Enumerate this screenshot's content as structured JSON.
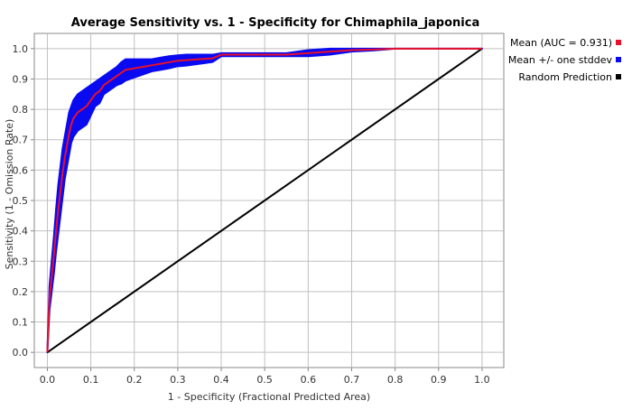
{
  "chart_data": {
    "type": "line",
    "title": "Average Sensitivity vs. 1 - Specificity for Chimaphila_japonica",
    "xlabel": "1 - Specificity (Fractional Predicted Area)",
    "ylabel": "Sensitivity (1 - Omission Rate)",
    "xlim": [
      -0.03,
      1.05
    ],
    "ylim": [
      -0.05,
      1.05
    ],
    "xticks": [
      "0.0",
      "0.1",
      "0.2",
      "0.3",
      "0.4",
      "0.5",
      "0.6",
      "0.7",
      "0.8",
      "0.9",
      "1.0"
    ],
    "yticks": [
      "0.0",
      "0.1",
      "0.2",
      "0.3",
      "0.4",
      "0.5",
      "0.6",
      "0.7",
      "0.8",
      "0.9",
      "1.0"
    ],
    "grid": true,
    "legend_position": "right",
    "series": [
      {
        "name": "Mean (AUC = 0.931)",
        "color": "#e8102a",
        "x": [
          0.0,
          0.005,
          0.01,
          0.015,
          0.02,
          0.025,
          0.03,
          0.035,
          0.04,
          0.045,
          0.05,
          0.055,
          0.06,
          0.065,
          0.07,
          0.08,
          0.09,
          0.1,
          0.11,
          0.12,
          0.13,
          0.14,
          0.15,
          0.16,
          0.17,
          0.18,
          0.2,
          0.22,
          0.24,
          0.26,
          0.28,
          0.3,
          0.32,
          0.34,
          0.36,
          0.38,
          0.4,
          0.45,
          0.5,
          0.55,
          0.6,
          0.65,
          0.7,
          0.75,
          0.8,
          0.85,
          0.9,
          0.95,
          1.0
        ],
        "y": [
          0.0,
          0.18,
          0.25,
          0.32,
          0.4,
          0.47,
          0.53,
          0.59,
          0.64,
          0.68,
          0.72,
          0.75,
          0.77,
          0.78,
          0.79,
          0.8,
          0.81,
          0.83,
          0.85,
          0.86,
          0.88,
          0.89,
          0.9,
          0.91,
          0.92,
          0.93,
          0.935,
          0.94,
          0.945,
          0.95,
          0.955,
          0.96,
          0.962,
          0.964,
          0.966,
          0.968,
          0.98,
          0.98,
          0.98,
          0.98,
          0.985,
          0.99,
          0.995,
          0.997,
          1.0,
          1.0,
          1.0,
          1.0,
          1.0
        ]
      },
      {
        "name": "Mean +/- one stddev",
        "color": "#0a0af0",
        "x": [
          0.0,
          0.005,
          0.01,
          0.015,
          0.02,
          0.025,
          0.03,
          0.035,
          0.04,
          0.045,
          0.05,
          0.055,
          0.06,
          0.065,
          0.07,
          0.08,
          0.09,
          0.1,
          0.11,
          0.12,
          0.13,
          0.14,
          0.15,
          0.16,
          0.17,
          0.18,
          0.2,
          0.22,
          0.24,
          0.26,
          0.28,
          0.3,
          0.32,
          0.34,
          0.36,
          0.38,
          0.4,
          0.45,
          0.5,
          0.55,
          0.6,
          0.65,
          0.7,
          0.75,
          0.8,
          0.85,
          0.9,
          0.95,
          1.0
        ],
        "upper": [
          0.0,
          0.22,
          0.3,
          0.38,
          0.47,
          0.55,
          0.61,
          0.67,
          0.71,
          0.75,
          0.79,
          0.81,
          0.83,
          0.84,
          0.85,
          0.86,
          0.87,
          0.88,
          0.89,
          0.9,
          0.91,
          0.92,
          0.93,
          0.94,
          0.955,
          0.965,
          0.965,
          0.965,
          0.965,
          0.97,
          0.975,
          0.978,
          0.98,
          0.98,
          0.98,
          0.98,
          0.985,
          0.985,
          0.985,
          0.985,
          0.995,
          1.0,
          1.0,
          1.0,
          1.0,
          1.0,
          1.0,
          1.0,
          1.0
        ],
        "lower": [
          0.0,
          0.14,
          0.2,
          0.26,
          0.33,
          0.39,
          0.45,
          0.51,
          0.57,
          0.61,
          0.65,
          0.69,
          0.71,
          0.72,
          0.73,
          0.74,
          0.75,
          0.78,
          0.81,
          0.82,
          0.85,
          0.86,
          0.87,
          0.88,
          0.885,
          0.895,
          0.905,
          0.915,
          0.925,
          0.93,
          0.935,
          0.942,
          0.944,
          0.948,
          0.952,
          0.956,
          0.975,
          0.975,
          0.975,
          0.975,
          0.975,
          0.98,
          0.99,
          0.994,
          1.0,
          1.0,
          1.0,
          1.0,
          1.0
        ]
      },
      {
        "name": "Random Prediction",
        "color": "#000000",
        "x": [
          0.0,
          1.0
        ],
        "y": [
          0.0,
          1.0
        ]
      }
    ]
  }
}
